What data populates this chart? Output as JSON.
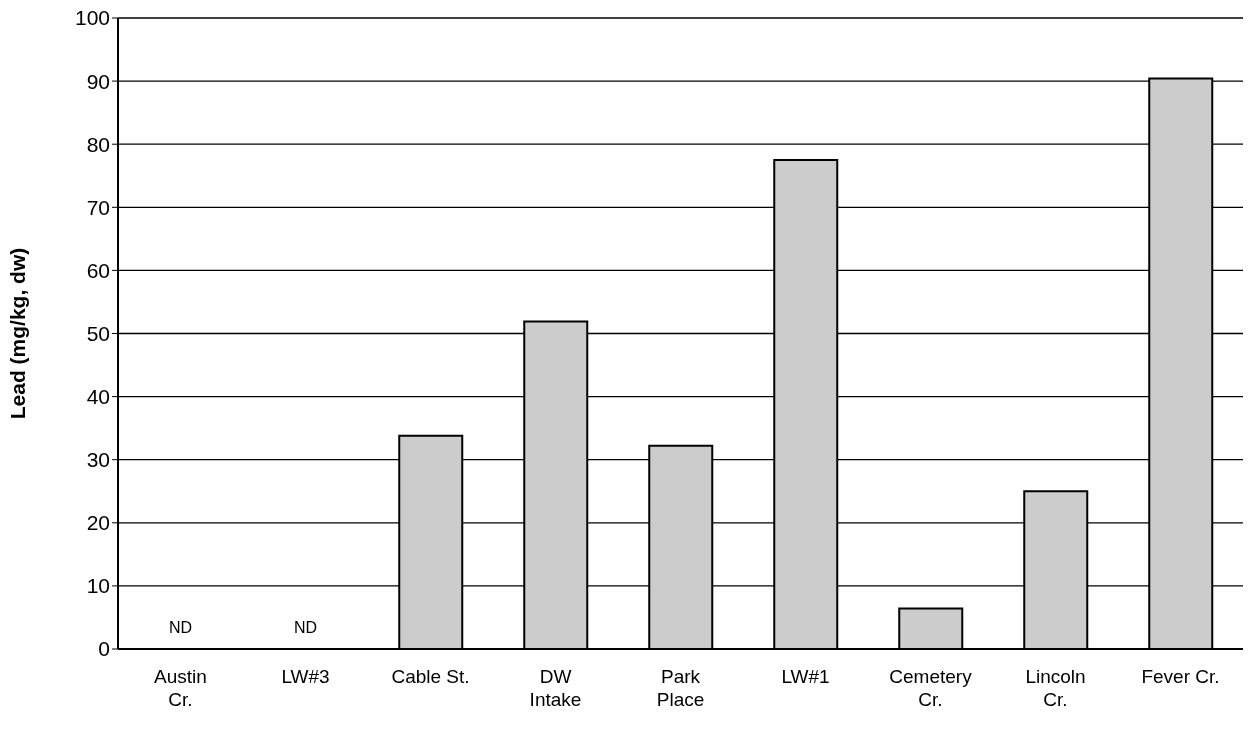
{
  "chart_data": {
    "type": "bar",
    "ylabel": "Lead (mg/kg, dw)",
    "categories": [
      "Austin\nCr.",
      "LW#3",
      "Cable St.",
      "DW\nIntake",
      "Park\nPlace",
      "LW#1",
      "Cemetery\nCr.",
      "Lincoln\nCr.",
      "Fever Cr."
    ],
    "values": [
      null,
      null,
      33.8,
      51.9,
      32.2,
      77.5,
      6.4,
      25.0,
      90.4
    ],
    "color": "#cccccc",
    "ylim": [
      0,
      100
    ],
    "yticks": [
      0,
      10,
      20,
      30,
      40,
      50,
      60,
      70,
      80,
      90,
      100
    ],
    "grid": "y",
    "legend": false,
    "value_labels": [
      "ND",
      "ND",
      null,
      null,
      null,
      null,
      null,
      null,
      null
    ]
  }
}
